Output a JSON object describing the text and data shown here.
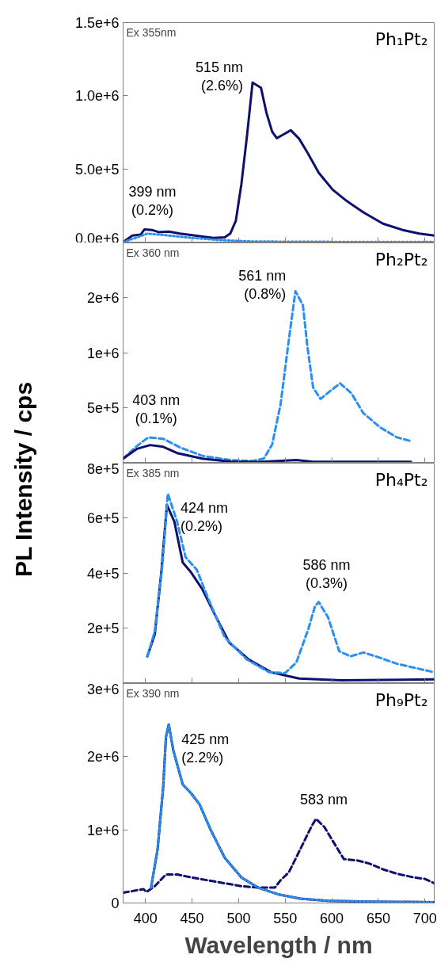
{
  "chart_data": [
    {
      "type": "line",
      "xlim": [
        376,
        710
      ],
      "xticks": [
        400,
        450,
        500,
        550,
        600,
        650,
        700
      ],
      "ylim": [
        0,
        1500000
      ],
      "yticks": [
        {
          "value": 0,
          "label": "0.0e+6"
        },
        {
          "value": 500000,
          "label": "5.0e+5"
        },
        {
          "value": 1000000,
          "label": "1.0e+6"
        },
        {
          "value": 1500000,
          "label": "1.5e+6"
        }
      ],
      "tick_labels": "y",
      "grid": false,
      "annotations": [
        "Ex 355nm",
        "Ph₁Pt₂",
        {
          "text": "515 nm\n(2.6%)",
          "x": 515,
          "y": 1090000
        },
        {
          "text": "399 nm\n(0.2%)",
          "x": 399,
          "y": 87000
        }
      ],
      "series": [
        {
          "color": "#0f0f6e",
          "line_style": "solid",
          "x": [
            376,
            386,
            395,
            399,
            407,
            414,
            425,
            437,
            455,
            473,
            485,
            491,
            497,
            503,
            509,
            515,
            524,
            530,
            536,
            541,
            548,
            556,
            565,
            574,
            586,
            601,
            616,
            634,
            655,
            676,
            694,
            710
          ],
          "values": [
            0,
            45000,
            52000,
            87000,
            83000,
            68000,
            72000,
            58000,
            43000,
            29000,
            33000,
            58000,
            145000,
            397000,
            726000,
            1090000,
            1055000,
            881000,
            755000,
            710000,
            735000,
            764000,
            706000,
            610000,
            474000,
            358000,
            281000,
            203000,
            126000,
            83000,
            58000,
            45000
          ]
        },
        {
          "color": "#2b8ff0",
          "line_style": "dotted",
          "x": [
            376,
            390,
            402,
            420,
            443,
            479,
            515,
            600,
            710
          ],
          "values": [
            0,
            30000,
            58000,
            48000,
            33000,
            14000,
            4000,
            2000,
            2000
          ]
        }
      ]
    },
    {
      "type": "line",
      "xlim": [
        376,
        710
      ],
      "xticks": [
        400,
        450,
        500,
        550,
        600,
        650,
        700
      ],
      "ylim": [
        0,
        2000000
      ],
      "yticks": [
        {
          "value": 0,
          "label": null
        },
        {
          "value": 500000,
          "label": "5e+5"
        },
        {
          "value": 1000000,
          "label": "1e+6"
        },
        {
          "value": 1500000,
          "label": "2e+6"
        },
        {
          "value": 2000000,
          "label": null
        }
      ],
      "tick_labels": "y",
      "grid": false,
      "annotations": [
        "Ex 360 nm",
        "Ph₂Pt₂",
        {
          "text": "561 nm\n(0.8%)",
          "x": 561,
          "y": 1560000
        },
        {
          "text": "403 nm\n(0.1%)",
          "x": 403,
          "y": 228000
        }
      ],
      "series": [
        {
          "color": "#2b8ff0",
          "line_style": "dashed",
          "x": [
            376,
            389,
            403,
            419,
            437,
            461,
            491,
            515,
            527,
            536,
            545,
            554,
            561,
            569,
            574,
            580,
            588,
            599,
            609,
            621,
            634,
            652,
            670,
            685
          ],
          "values": [
            34000,
            137000,
            228000,
            215000,
            137000,
            60000,
            21000,
            13000,
            34000,
            163000,
            526000,
            1122000,
            1560000,
            1433000,
            1044000,
            681000,
            578000,
            655000,
            720000,
            630000,
            448000,
            319000,
            228000,
            194000
          ]
        },
        {
          "color": "#0f0f6e",
          "line_style": "solid",
          "x": [
            376,
            391,
            405,
            419,
            434,
            461,
            491,
            521,
            562,
            580,
            685
          ],
          "values": [
            34000,
            124000,
            158000,
            142000,
            85000,
            34000,
            8000,
            3000,
            21000,
            5000,
            5000
          ]
        }
      ]
    },
    {
      "type": "line",
      "xlim": [
        376,
        710
      ],
      "xticks": [
        400,
        450,
        500,
        550,
        600,
        650,
        700
      ],
      "ylim": [
        0,
        800000
      ],
      "yticks": [
        {
          "value": 0,
          "label": null
        },
        {
          "value": 200000,
          "label": "2e+5"
        },
        {
          "value": 400000,
          "label": "4e+5"
        },
        {
          "value": 600000,
          "label": "6e+5"
        },
        {
          "value": 800000,
          "label": "8e+5"
        }
      ],
      "tick_labels": "y",
      "grid": false,
      "ylabel": "PL Intensity / cps",
      "annotations": [
        "Ex 385 nm",
        "Ph₄Pt₂",
        {
          "text": "424 nm\n(0.2%)",
          "x": 424,
          "y": 689000
        },
        {
          "text": "586 nm\n(0.3%)",
          "x": 586,
          "y": 294000
        }
      ],
      "series": [
        {
          "color": "#0f0f6e",
          "line_style": "solid",
          "x": [
            402,
            410,
            417,
            423,
            431,
            440,
            449,
            461,
            476,
            490,
            511,
            535,
            565,
            610,
            710
          ],
          "values": [
            96000,
            176000,
            402000,
            648000,
            587000,
            438000,
            402000,
            341000,
            238000,
            146000,
            84000,
            38000,
            15000,
            9000,
            12000
          ]
        },
        {
          "color": "#2b8ff0",
          "line_style": "dashed",
          "x": [
            402,
            410,
            418,
            424,
            434,
            443,
            455,
            467,
            485,
            509,
            533,
            550,
            562,
            575,
            582,
            586,
            596,
            608,
            620,
            634,
            649,
            670,
            688,
            710
          ],
          "values": [
            96000,
            187000,
            423000,
            689000,
            587000,
            458000,
            412000,
            310000,
            166000,
            84000,
            38000,
            35000,
            74000,
            197000,
            279000,
            294000,
            238000,
            115000,
            96000,
            110000,
            94000,
            69000,
            55000,
            38000
          ]
        }
      ]
    },
    {
      "type": "line",
      "xlim": [
        376,
        710
      ],
      "xticks": [
        400,
        450,
        500,
        550,
        600,
        650,
        700
      ],
      "ylim": [
        0,
        3000000
      ],
      "yticks": [
        {
          "value": 0,
          "label": "0"
        },
        {
          "value": 1000000,
          "label": "1e+6"
        },
        {
          "value": 2000000,
          "label": "2e+6"
        },
        {
          "value": 3000000,
          "label": "3e+6"
        }
      ],
      "grid": false,
      "xlabel": "Wavelength / nm",
      "annotations": [
        "Ex 390 nm",
        "Ph₉Pt₂",
        {
          "text": "425 nm\n(2.2%)",
          "x": 425,
          "y": 2440000
        },
        {
          "text": "583 nm",
          "x": 583,
          "y": 1150000
        }
      ],
      "series": [
        {
          "color": "#0f0f6e",
          "line_style": "dashed",
          "x": [
            376,
            389,
            398,
            401,
            410,
            422,
            434,
            449,
            467,
            485,
            503,
            521,
            539,
            545,
            554,
            566,
            578,
            583,
            592,
            601,
            613,
            628,
            640,
            655,
            670,
            688,
            700,
            710
          ],
          "values": [
            140000,
            170000,
            190000,
            150000,
            230000,
            390000,
            390000,
            350000,
            310000,
            270000,
            230000,
            210000,
            210000,
            310000,
            420000,
            730000,
            1040000,
            1150000,
            1040000,
            850000,
            600000,
            580000,
            540000,
            460000,
            400000,
            350000,
            330000,
            270000
          ]
        },
        {
          "color": "#0f0f6e",
          "line_style": "solid",
          "x": [
            406,
            413,
            419,
            422,
            425,
            430,
            440,
            449,
            458,
            470,
            485,
            503,
            521,
            542,
            566,
            596,
            640,
            710
          ],
          "values": [
            210000,
            730000,
            1580000,
            2270000,
            2440000,
            2080000,
            1620000,
            1500000,
            1350000,
            1000000,
            620000,
            350000,
            210000,
            120000,
            60000,
            30000,
            20000,
            10000
          ]
        },
        {
          "color": "#2b8ff0",
          "line_style": "dotted",
          "x": [
            406,
            413,
            419,
            422,
            425,
            430,
            440,
            449,
            458,
            470,
            485,
            503,
            521,
            542,
            566,
            596,
            640,
            710
          ],
          "values": [
            210000,
            730000,
            1580000,
            2270000,
            2440000,
            2080000,
            1620000,
            1500000,
            1350000,
            1000000,
            620000,
            350000,
            210000,
            120000,
            60000,
            30000,
            20000,
            10000
          ]
        }
      ]
    }
  ]
}
